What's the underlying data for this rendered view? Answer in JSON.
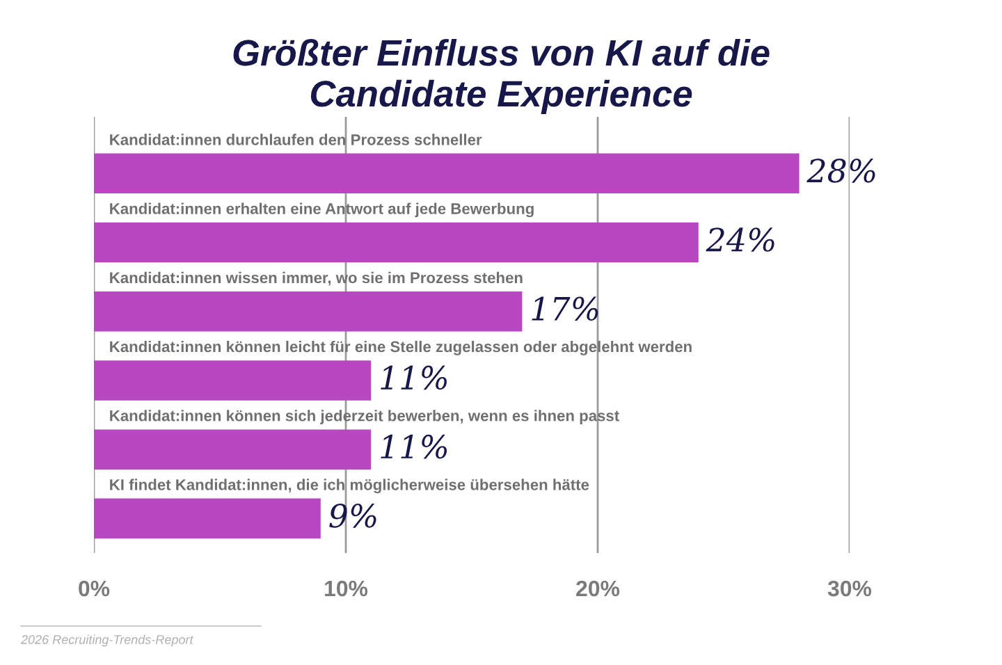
{
  "chart_data": {
    "type": "bar",
    "orientation": "horizontal",
    "title": "Größter Einfluss von KI auf die\nCandidate Experience",
    "categories": [
      "Kandidat:innen durchlaufen den Prozess schneller",
      "Kandidat:innen erhalten eine Antwort auf jede Bewerbung",
      "Kandidat:innen wissen immer, wo sie im Prozess stehen",
      "Kandidat:innen können leicht für eine Stelle zugelassen oder abgelehnt werden",
      "Kandidat:innen können sich jederzeit bewerben, wenn es ihnen passt",
      "KI findet Kandidat:innen, die ich möglicherweise übersehen hätte"
    ],
    "values": [
      28,
      24,
      17,
      11,
      11,
      9
    ],
    "value_labels": [
      "28%",
      "24%",
      "17%",
      "11%",
      "11%",
      "9%"
    ],
    "color": "#b847c2",
    "xlim": [
      0,
      30
    ],
    "xticks": [
      {
        "value": 0,
        "label": "0%"
      },
      {
        "value": 10,
        "label": "10%"
      },
      {
        "value": 20,
        "label": "20%"
      },
      {
        "value": 30,
        "label": "30%"
      }
    ],
    "grid": "x",
    "annotations": [
      "2026 Recruiting-Trends-Report"
    ]
  }
}
